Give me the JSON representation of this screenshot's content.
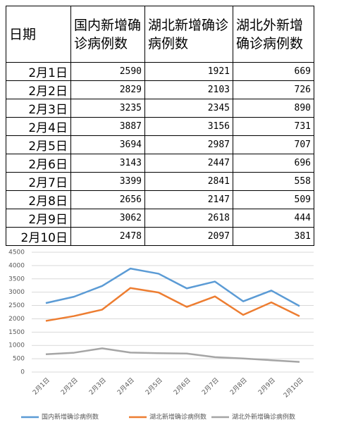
{
  "table": {
    "date_header": "日期"
  },
  "chart_data": {
    "type": "line",
    "categories": [
      "2月1日",
      "2月2日",
      "2月3日",
      "2月4日",
      "2月5日",
      "2月6日",
      "2月7日",
      "2月8日",
      "2月9日",
      "2月10日"
    ],
    "series": [
      {
        "name": "国内新增确诊病例数",
        "color": "#5b9bd5",
        "values": [
          2590,
          2829,
          3235,
          3887,
          3694,
          3143,
          3399,
          2656,
          3062,
          2478
        ]
      },
      {
        "name": "湖北新增确诊病例数",
        "color": "#ed7d31",
        "values": [
          1921,
          2103,
          2345,
          3156,
          2987,
          2447,
          2841,
          2147,
          2618,
          2097
        ]
      },
      {
        "name": "湖北外新增确诊病例数",
        "color": "#a5a5a5",
        "values": [
          669,
          726,
          890,
          731,
          707,
          696,
          558,
          509,
          444,
          381
        ]
      }
    ],
    "ylim": [
      0,
      4500
    ],
    "yticks": [
      0,
      500,
      1000,
      1500,
      2000,
      2500,
      3000,
      3500,
      4000,
      4500
    ],
    "grid": true
  }
}
